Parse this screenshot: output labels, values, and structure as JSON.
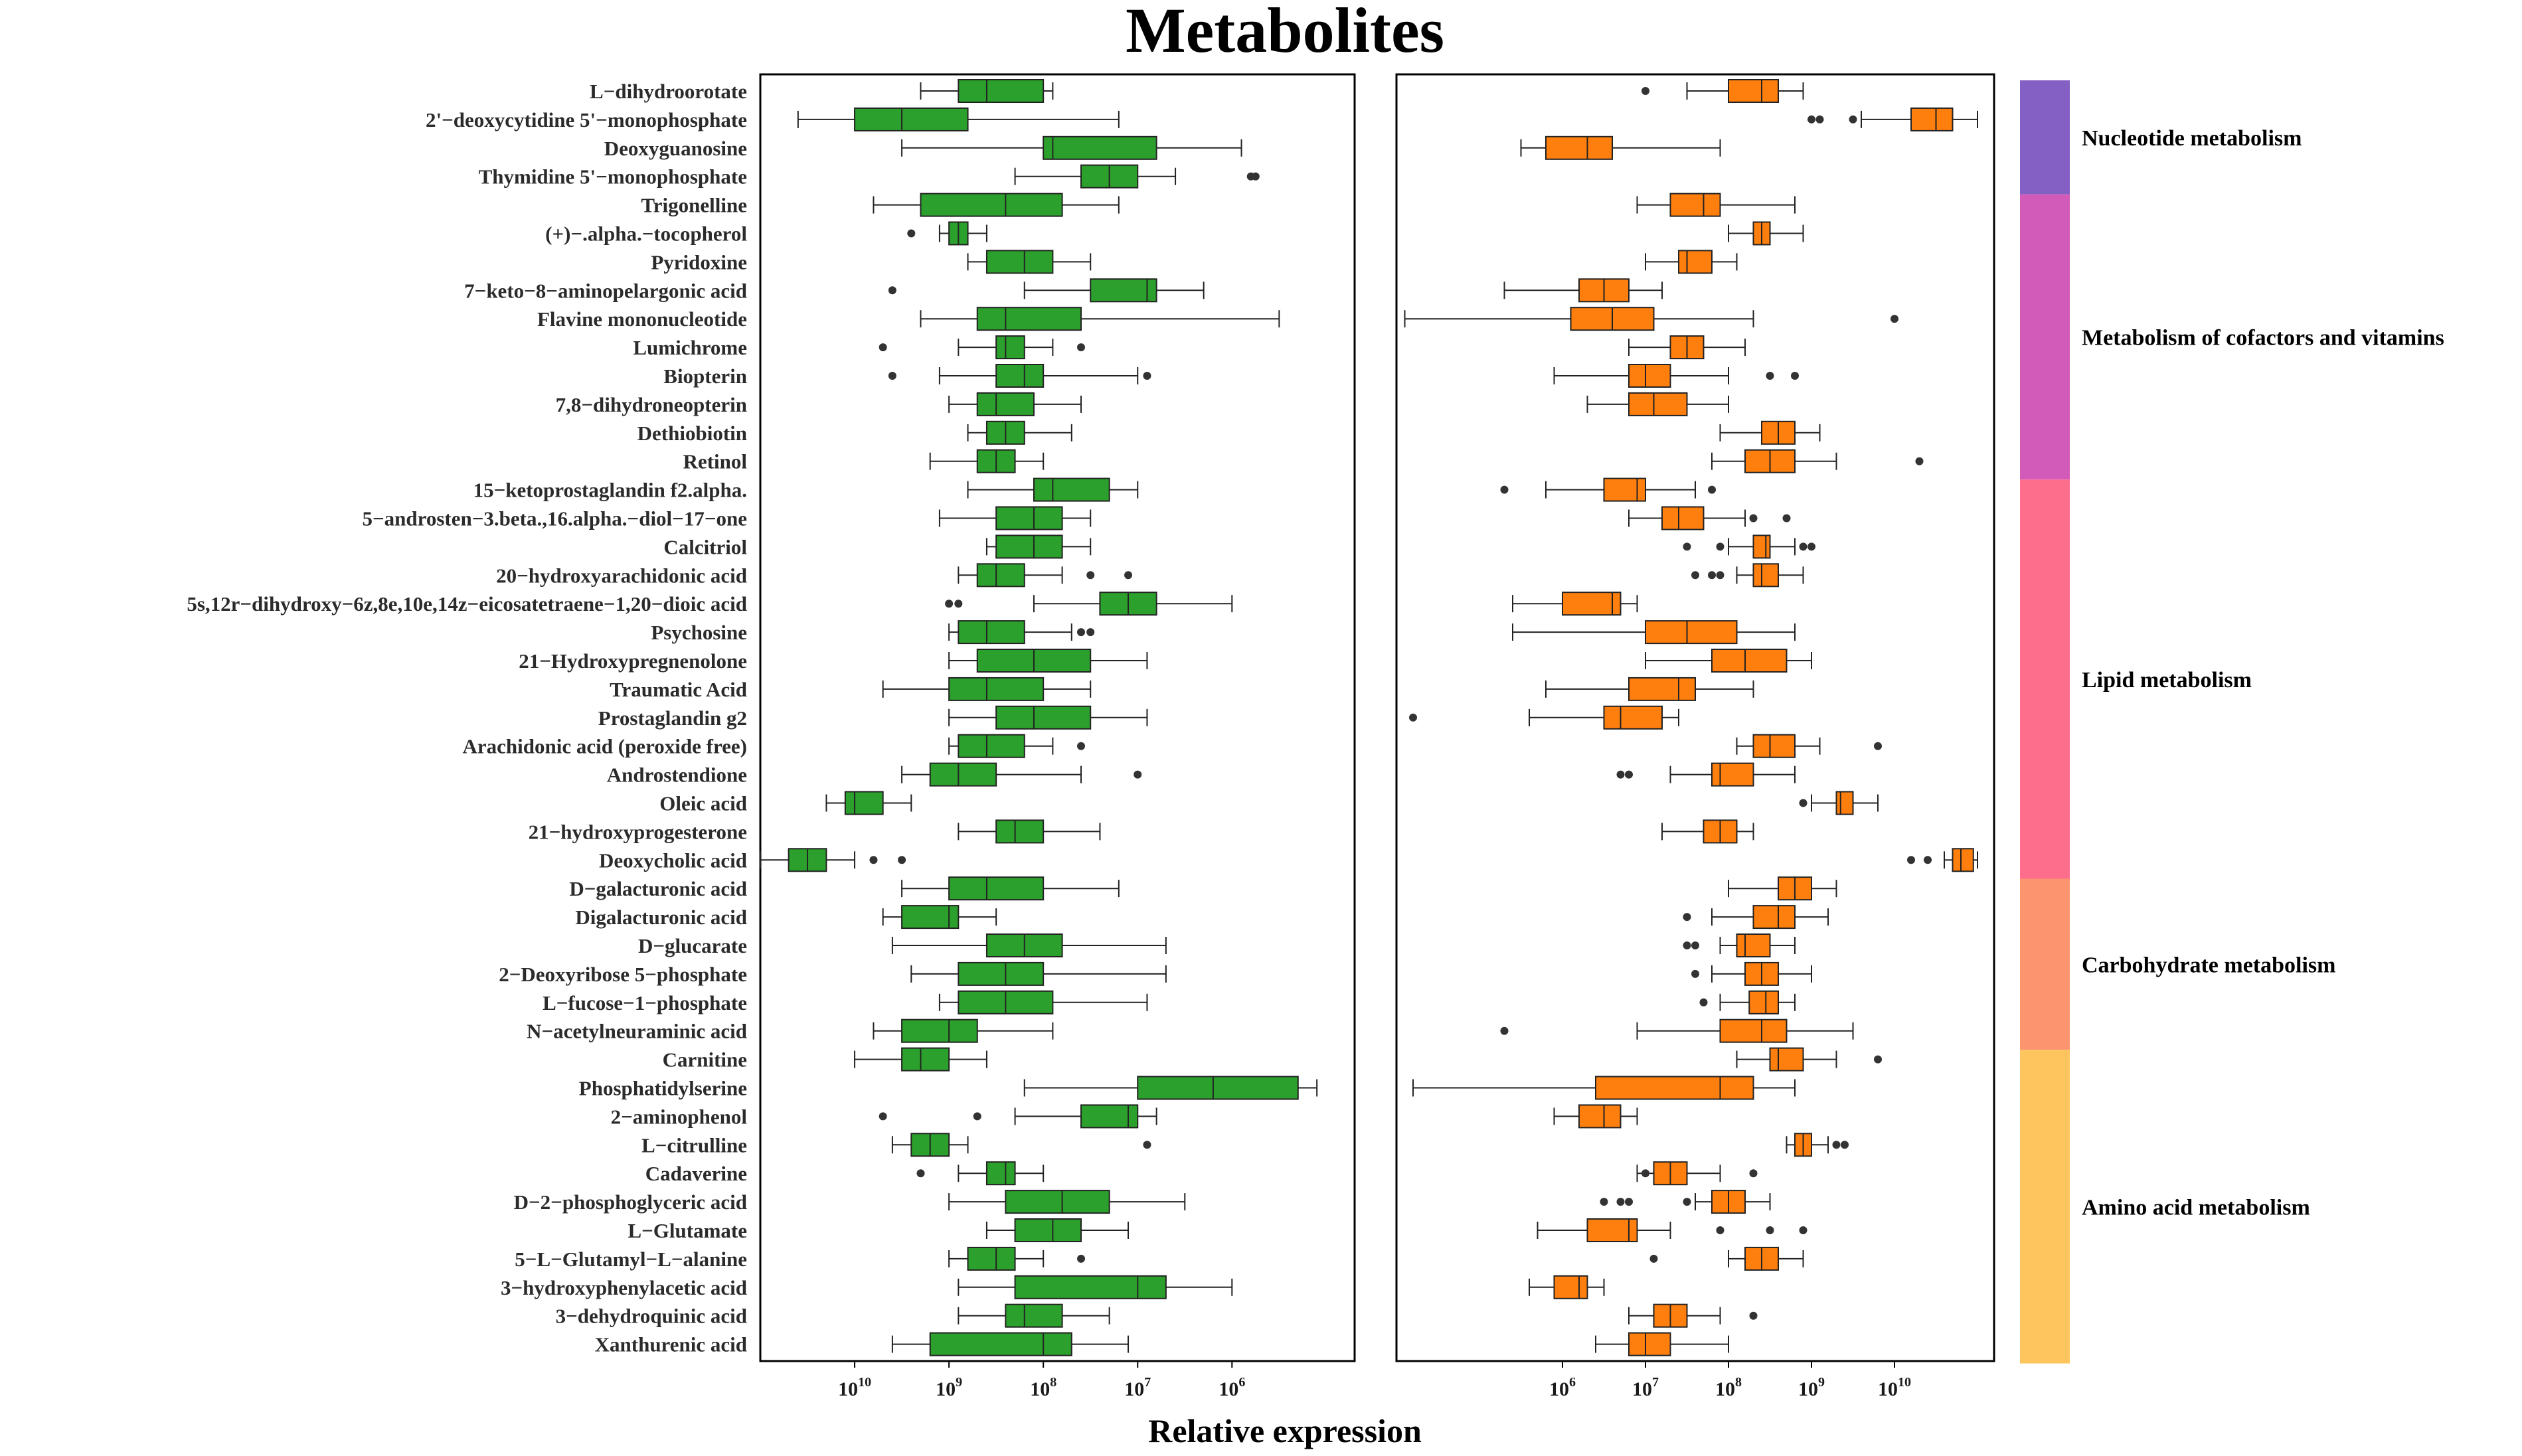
{
  "chart_data": {
    "type": "box",
    "title": "Metabolites",
    "xlabel": "Relative expression",
    "x_scale": "log10",
    "panels": [
      {
        "name": "left",
        "color": "#2ca02c",
        "x_direction": "reversed",
        "xlim": [
          11,
          4.7
        ],
        "ticks": [
          {
            "base": "10",
            "exp": "10",
            "value": 10
          },
          {
            "base": "10",
            "exp": "9",
            "value": 9
          },
          {
            "base": "10",
            "exp": "8",
            "value": 8
          },
          {
            "base": "10",
            "exp": "7",
            "value": 7
          },
          {
            "base": "10",
            "exp": "6",
            "value": 6
          }
        ]
      },
      {
        "name": "right",
        "color": "#ff7f0e",
        "x_direction": "normal",
        "xlim": [
          4.0,
          11.2
        ],
        "ticks": [
          {
            "base": "10",
            "exp": "6",
            "value": 6
          },
          {
            "base": "10",
            "exp": "7",
            "value": 7
          },
          {
            "base": "10",
            "exp": "8",
            "value": 8
          },
          {
            "base": "10",
            "exp": "9",
            "value": 9
          },
          {
            "base": "10",
            "exp": "10",
            "value": 10
          }
        ]
      }
    ],
    "categories": [
      {
        "name": "Nucleotide metabolism",
        "color": "#8560c4",
        "count": 4
      },
      {
        "name": "Metabolism of cofactors and vitamins",
        "color": "#d25ab8",
        "count": 10
      },
      {
        "name": "Lipid metabolism",
        "color": "#fd6d8c",
        "count": 14
      },
      {
        "name": "Carbohydrate metabolism",
        "color": "#fd9470",
        "count": 6
      },
      {
        "name": "Amino acid metabolism",
        "color": "#fec45e",
        "count": 11
      }
    ],
    "metabolites": [
      {
        "name": "L−dihydroorotate",
        "left": [
          9.3,
          8.9,
          8.6,
          8.0,
          7.9,
          []
        ],
        "right": [
          7.5,
          8.0,
          8.4,
          8.6,
          8.9,
          [
            7.0
          ]
        ]
      },
      {
        "name": "2'−deoxycytidine 5'−monophosphate",
        "left": [
          10.6,
          10.0,
          9.5,
          8.8,
          7.2,
          []
        ],
        "right": [
          9.6,
          10.2,
          10.5,
          10.7,
          11.0,
          [
            9.0,
            9.1,
            9.5
          ]
        ]
      },
      {
        "name": "Deoxyguanosine",
        "left": [
          9.5,
          8.0,
          7.9,
          6.8,
          5.9,
          []
        ],
        "right": [
          5.5,
          5.8,
          6.3,
          6.6,
          7.9,
          []
        ]
      },
      {
        "name": "Thymidine 5'−monophosphate",
        "left": [
          8.3,
          7.6,
          7.3,
          7.0,
          6.6,
          [
            5.8,
            5.75
          ]
        ]
      },
      {
        "name": "Trigonelline",
        "left": [
          9.8,
          9.3,
          8.4,
          7.8,
          7.2,
          []
        ],
        "right": [
          6.9,
          7.3,
          7.7,
          7.9,
          8.8,
          []
        ]
      },
      {
        "name": "(+)−.alpha.−tocopherol",
        "left": [
          9.1,
          9.0,
          8.9,
          8.8,
          8.6,
          [
            9.4
          ]
        ],
        "right": [
          8.0,
          8.3,
          8.4,
          8.5,
          8.9,
          []
        ]
      },
      {
        "name": "Pyridoxine",
        "left": [
          8.8,
          8.6,
          8.2,
          7.9,
          7.5,
          []
        ],
        "right": [
          7.0,
          7.4,
          7.5,
          7.8,
          8.1,
          []
        ]
      },
      {
        "name": "7−keto−8−aminopelargonic acid",
        "left": [
          8.2,
          7.5,
          6.9,
          6.8,
          6.3,
          [
            9.6
          ]
        ],
        "right": [
          5.3,
          6.2,
          6.5,
          6.8,
          7.2,
          []
        ]
      },
      {
        "name": "Flavine mononucleotide",
        "left": [
          9.3,
          8.7,
          8.4,
          7.6,
          5.5,
          []
        ],
        "right": [
          4.1,
          6.1,
          6.6,
          7.1,
          8.3,
          [
            10.0
          ]
        ]
      },
      {
        "name": "Lumichrome",
        "left": [
          8.9,
          8.5,
          8.4,
          8.2,
          7.9,
          [
            9.7,
            7.6
          ]
        ],
        "right": [
          6.8,
          7.3,
          7.5,
          7.7,
          8.2,
          []
        ]
      },
      {
        "name": "Biopterin",
        "left": [
          9.1,
          8.5,
          8.2,
          8.0,
          7.0,
          [
            9.6,
            6.9
          ]
        ],
        "right": [
          5.9,
          6.8,
          7.0,
          7.3,
          8.0,
          [
            8.5,
            8.8
          ]
        ]
      },
      {
        "name": "7,8−dihydroneopterin",
        "left": [
          9.0,
          8.7,
          8.5,
          8.1,
          7.6,
          []
        ],
        "right": [
          6.3,
          6.8,
          7.1,
          7.5,
          8.0,
          []
        ]
      },
      {
        "name": "Dethiobiotin",
        "left": [
          8.8,
          8.6,
          8.4,
          8.2,
          7.7,
          []
        ],
        "right": [
          7.9,
          8.4,
          8.6,
          8.8,
          9.1,
          []
        ]
      },
      {
        "name": "Retinol",
        "left": [
          9.2,
          8.7,
          8.5,
          8.3,
          8.0,
          []
        ],
        "right": [
          7.8,
          8.2,
          8.5,
          8.8,
          9.3,
          [
            10.3
          ]
        ]
      },
      {
        "name": "15−ketoprostaglandin f2.alpha.",
        "left": [
          8.8,
          8.1,
          7.9,
          7.3,
          7.0,
          []
        ],
        "right": [
          5.8,
          6.5,
          6.9,
          7.0,
          7.6,
          [
            5.3,
            7.8
          ]
        ]
      },
      {
        "name": "5−androsten−3.beta.,16.alpha.−diol−17−one",
        "left": [
          9.1,
          8.5,
          8.1,
          7.8,
          7.5,
          []
        ],
        "right": [
          6.8,
          7.2,
          7.4,
          7.7,
          8.2,
          [
            8.3,
            8.7
          ]
        ]
      },
      {
        "name": "Calcitriol",
        "left": [
          8.6,
          8.5,
          8.1,
          7.8,
          7.5,
          []
        ],
        "right": [
          8.0,
          8.3,
          8.45,
          8.5,
          8.8,
          [
            7.5,
            7.9,
            8.9,
            9.0
          ]
        ]
      },
      {
        "name": "20−hydroxyarachidonic acid",
        "left": [
          8.9,
          8.7,
          8.5,
          8.2,
          7.8,
          [
            7.5,
            7.1
          ]
        ],
        "right": [
          8.1,
          8.3,
          8.4,
          8.6,
          8.9,
          [
            7.6,
            7.8,
            7.9
          ]
        ]
      },
      {
        "name": "5s,12r−dihydroxy−6z,8e,10e,14z−eicosatetraene−1,20−dioic acid",
        "left": [
          8.1,
          7.4,
          7.1,
          6.8,
          6.0,
          [
            9.0,
            8.9
          ]
        ],
        "right": [
          5.4,
          6.0,
          6.6,
          6.7,
          6.9,
          []
        ]
      },
      {
        "name": "Psychosine",
        "left": [
          9.0,
          8.9,
          8.6,
          8.2,
          7.7,
          [
            7.6,
            7.5
          ]
        ],
        "right": [
          5.4,
          7.0,
          7.5,
          8.1,
          8.8,
          []
        ]
      },
      {
        "name": "21−Hydroxypregnenolone",
        "left": [
          9.0,
          8.7,
          8.1,
          7.5,
          6.9,
          []
        ],
        "right": [
          7.0,
          7.8,
          8.2,
          8.7,
          9.0,
          []
        ]
      },
      {
        "name": "Traumatic Acid",
        "left": [
          9.7,
          9.0,
          8.6,
          8.0,
          7.5,
          []
        ],
        "right": [
          5.8,
          6.8,
          7.4,
          7.6,
          8.3,
          []
        ]
      },
      {
        "name": "Prostaglandin g2",
        "left": [
          9.0,
          8.5,
          8.1,
          7.5,
          6.9,
          []
        ],
        "right": [
          5.6,
          6.5,
          6.7,
          7.2,
          7.4,
          [
            4.2
          ]
        ]
      },
      {
        "name": "Arachidonic acid (peroxide free)",
        "left": [
          9.0,
          8.9,
          8.6,
          8.2,
          7.9,
          [
            7.6
          ]
        ],
        "right": [
          8.1,
          8.3,
          8.5,
          8.8,
          9.1,
          [
            9.8
          ]
        ]
      },
      {
        "name": "Androstendione",
        "left": [
          9.5,
          9.2,
          8.9,
          8.5,
          7.6,
          [
            7.0
          ]
        ],
        "right": [
          7.3,
          7.8,
          7.9,
          8.3,
          8.8,
          [
            6.7,
            6.8
          ]
        ]
      },
      {
        "name": "Oleic acid",
        "left": [
          10.3,
          10.1,
          10.0,
          9.7,
          9.4,
          []
        ],
        "right": [
          9.0,
          9.3,
          9.35,
          9.5,
          9.8,
          [
            8.9
          ]
        ]
      },
      {
        "name": "21−hydroxyprogesterone",
        "left": [
          8.9,
          8.5,
          8.3,
          8.0,
          7.4,
          []
        ],
        "right": [
          7.2,
          7.7,
          7.9,
          8.1,
          8.3,
          []
        ]
      },
      {
        "name": "Deoxycholic acid",
        "left": [
          11.0,
          10.7,
          10.5,
          10.3,
          10.0,
          [
            9.8,
            9.5
          ]
        ],
        "right": [
          10.6,
          10.7,
          10.8,
          10.95,
          11.0,
          [
            10.2,
            10.4
          ]
        ]
      },
      {
        "name": "D−galacturonic acid",
        "left": [
          9.5,
          9.0,
          8.6,
          8.0,
          7.2,
          []
        ],
        "right": [
          8.0,
          8.6,
          8.8,
          9.0,
          9.3,
          []
        ]
      },
      {
        "name": "Digalacturonic acid",
        "left": [
          9.7,
          9.5,
          9.0,
          8.9,
          8.5,
          []
        ],
        "right": [
          7.8,
          8.3,
          8.6,
          8.8,
          9.2,
          [
            7.5
          ]
        ]
      },
      {
        "name": "D−glucarate",
        "left": [
          9.6,
          8.6,
          8.2,
          7.8,
          6.7,
          []
        ],
        "right": [
          7.9,
          8.1,
          8.2,
          8.5,
          8.8,
          [
            7.5,
            7.6
          ]
        ]
      },
      {
        "name": "2−Deoxyribose 5−phosphate",
        "left": [
          9.4,
          8.9,
          8.4,
          8.0,
          6.7,
          []
        ],
        "right": [
          7.8,
          8.2,
          8.4,
          8.6,
          9.0,
          [
            7.6
          ]
        ]
      },
      {
        "name": "L−fucose−1−phosphate",
        "left": [
          9.1,
          8.9,
          8.4,
          7.9,
          6.9,
          []
        ],
        "right": [
          7.9,
          8.25,
          8.45,
          8.6,
          8.8,
          [
            7.7
          ]
        ]
      },
      {
        "name": "N−acetylneuraminic acid",
        "left": [
          9.8,
          9.5,
          9.0,
          8.7,
          7.9,
          []
        ],
        "right": [
          6.9,
          7.9,
          8.4,
          8.7,
          9.5,
          [
            5.3
          ]
        ]
      },
      {
        "name": "Carnitine",
        "left": [
          10.0,
          9.5,
          9.3,
          9.0,
          8.6,
          []
        ],
        "right": [
          8.1,
          8.5,
          8.6,
          8.9,
          9.3,
          [
            9.8
          ]
        ]
      },
      {
        "name": "Phosphatidylserine",
        "left": [
          8.2,
          7.0,
          6.2,
          5.3,
          5.1,
          []
        ],
        "right": [
          4.2,
          6.4,
          7.9,
          8.3,
          8.8,
          []
        ]
      },
      {
        "name": "2−aminophenol",
        "left": [
          8.3,
          7.6,
          7.1,
          7.0,
          6.8,
          [
            9.7,
            8.7
          ]
        ],
        "right": [
          5.9,
          6.2,
          6.5,
          6.7,
          6.9,
          []
        ]
      },
      {
        "name": "L−citrulline",
        "left": [
          9.6,
          9.4,
          9.2,
          9.0,
          8.8,
          [
            6.9
          ]
        ],
        "right": [
          8.7,
          8.8,
          8.9,
          9.0,
          9.2,
          [
            9.3,
            9.4
          ]
        ]
      },
      {
        "name": "Cadaverine",
        "left": [
          8.9,
          8.6,
          8.4,
          8.3,
          8.0,
          [
            9.3
          ]
        ],
        "right": [
          6.9,
          7.1,
          7.3,
          7.5,
          7.9,
          [
            7.0,
            8.3
          ]
        ]
      },
      {
        "name": "D−2−phosphoglyceric acid",
        "left": [
          9.0,
          8.4,
          7.8,
          7.3,
          6.5,
          []
        ],
        "right": [
          7.6,
          7.8,
          8.0,
          8.2,
          8.5,
          [
            6.5,
            6.7,
            6.8,
            7.5
          ]
        ]
      },
      {
        "name": "L−Glutamate",
        "left": [
          8.6,
          8.3,
          7.9,
          7.6,
          7.1,
          []
        ],
        "right": [
          5.7,
          6.3,
          6.8,
          6.9,
          7.3,
          [
            7.9,
            8.5,
            8.9
          ]
        ]
      },
      {
        "name": "5−L−Glutamyl−L−alanine",
        "left": [
          9.0,
          8.8,
          8.5,
          8.3,
          8.0,
          [
            7.6
          ]
        ],
        "right": [
          8.0,
          8.2,
          8.4,
          8.6,
          8.9,
          [
            7.1
          ]
        ]
      },
      {
        "name": "3−hydroxyphenylacetic acid",
        "left": [
          8.9,
          8.3,
          7.0,
          6.7,
          6.0,
          []
        ],
        "right": [
          5.6,
          5.9,
          6.2,
          6.3,
          6.5,
          []
        ]
      },
      {
        "name": "3−dehydroquinic acid",
        "left": [
          8.9,
          8.4,
          8.2,
          7.8,
          7.3,
          []
        ],
        "right": [
          6.8,
          7.1,
          7.3,
          7.5,
          7.9,
          [
            8.3
          ]
        ]
      },
      {
        "name": "Xanthurenic acid",
        "left": [
          9.6,
          9.2,
          8.0,
          7.7,
          7.1,
          []
        ],
        "right": [
          6.4,
          6.8,
          7.0,
          7.3,
          8.0,
          []
        ]
      }
    ]
  }
}
